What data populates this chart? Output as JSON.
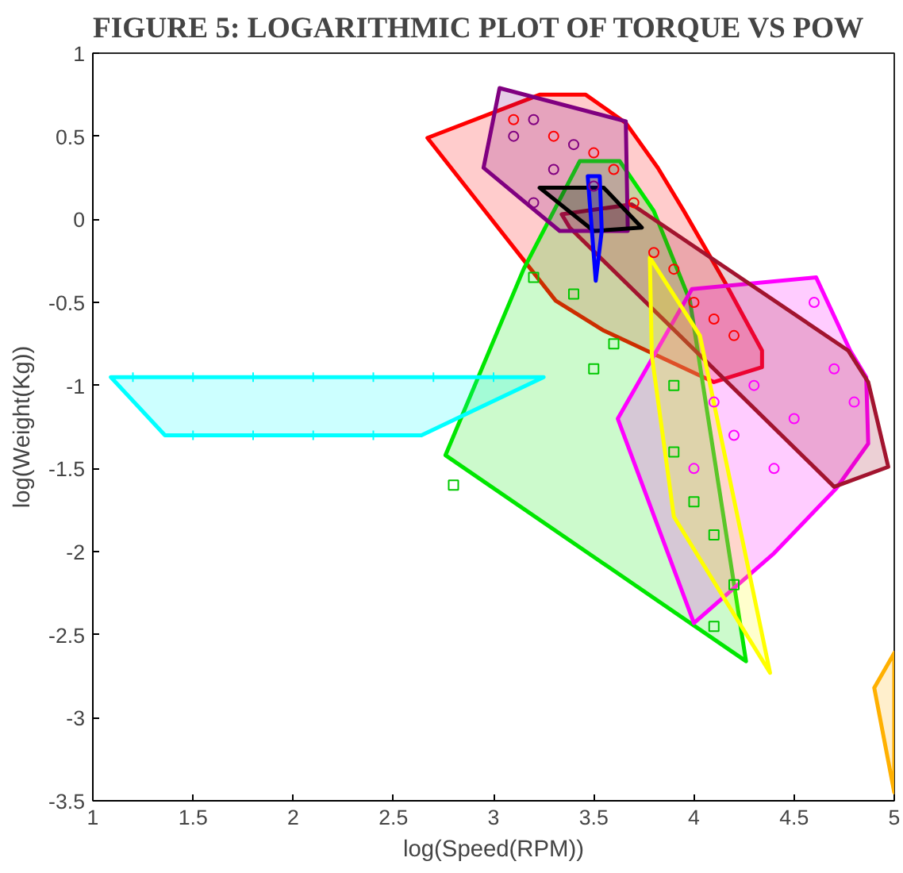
{
  "chart_data": {
    "type": "area",
    "title": "FIGURE 5: LOGARITHMIC PLOT OF TORQUE VS POW",
    "xlabel": "log(Speed(RPM))",
    "ylabel": "log(Weight(Kg))",
    "xlim": [
      1,
      5
    ],
    "ylim": [
      -3.5,
      1
    ],
    "xticks": [
      1,
      1.5,
      2,
      2.5,
      3,
      3.5,
      4,
      4.5,
      5
    ],
    "yticks": [
      -3.5,
      -3,
      -2.5,
      -2,
      -1.5,
      -1,
      -0.5,
      0,
      0.5,
      1
    ],
    "grid": false,
    "series": [
      {
        "color": "#ff0000",
        "x": [
          2.67,
          3.23,
          3.46,
          3.66,
          3.82,
          3.95,
          4.16,
          4.34,
          4.34,
          4.1,
          3.55,
          3.31
        ],
        "values": [
          0.49,
          0.75,
          0.75,
          0.58,
          0.31,
          0.05,
          -0.39,
          -0.79,
          -0.89,
          -0.98,
          -0.67,
          -0.49
        ]
      },
      {
        "color": "#00e600",
        "x": [
          3.43,
          3.63,
          3.8,
          3.98,
          4.26,
          2.76,
          3.15
        ],
        "values": [
          0.35,
          0.35,
          0.05,
          -0.49,
          -2.66,
          -1.42,
          -0.3
        ]
      },
      {
        "color": "#00ffff",
        "x": [
          1.09,
          3.25,
          2.64,
          1.36
        ],
        "values": [
          -0.95,
          -0.95,
          -1.3,
          -1.3
        ]
      },
      {
        "color": "#ff00ff",
        "x": [
          3.99,
          4.61,
          4.78,
          4.86,
          4.87,
          4.71,
          4.4,
          4.0,
          3.62
        ],
        "values": [
          -0.42,
          -0.35,
          -0.79,
          -0.95,
          -1.35,
          -1.62,
          -2.01,
          -2.43,
          -1.2
        ]
      },
      {
        "color": "#a2142f",
        "x": [
          3.34,
          3.69,
          4.77,
          4.87,
          4.97,
          4.7,
          3.38
        ],
        "values": [
          0.03,
          0.09,
          -0.79,
          -0.98,
          -1.49,
          -1.61,
          -0.05
        ]
      },
      {
        "color": "#800080",
        "x": [
          3.03,
          3.66,
          3.67,
          3.33,
          2.95
        ],
        "values": [
          0.79,
          0.59,
          -0.07,
          -0.07,
          0.31
        ]
      },
      {
        "color": "#ffff00",
        "x": [
          3.78,
          4.03,
          4.38,
          3.9,
          3.79
        ],
        "values": [
          -0.23,
          -0.7,
          -2.73,
          -1.79,
          -0.82
        ]
      },
      {
        "color": "#000000",
        "x": [
          3.23,
          3.55,
          3.74,
          3.5
        ],
        "values": [
          0.19,
          0.19,
          -0.05,
          -0.07
        ]
      },
      {
        "color": "#0000ff",
        "x": [
          3.47,
          3.53,
          3.54,
          3.51
        ],
        "values": [
          0.26,
          0.26,
          -0.07,
          -0.37
        ]
      },
      {
        "color": "#ffb000",
        "x": [
          4.9,
          5.0,
          5.0
        ],
        "values": [
          -2.82,
          -2.61,
          -3.45
        ]
      },
      {
        "type": "scatter",
        "marker": "cross",
        "color": "#00ffff",
        "x": [
          1.2,
          1.5,
          1.8,
          2.1,
          2.4,
          2.7,
          3.0,
          1.5,
          1.8,
          2.1,
          2.4
        ],
        "values": [
          -0.95,
          -0.95,
          -0.95,
          -0.95,
          -0.95,
          -0.95,
          -0.95,
          -1.3,
          -1.3,
          -1.3,
          -1.3
        ]
      },
      {
        "type": "scatter",
        "marker": "square",
        "color": "#00c800",
        "x": [
          3.2,
          3.4,
          3.6,
          3.5,
          3.9,
          4.0,
          4.1,
          3.9,
          4.2,
          4.1,
          2.8
        ],
        "values": [
          -0.35,
          -0.45,
          -0.75,
          -0.9,
          -1.0,
          -1.7,
          -1.9,
          -1.4,
          -2.2,
          -2.45,
          -1.6
        ]
      },
      {
        "type": "scatter",
        "marker": "circle",
        "color": "#ff0000",
        "x": [
          3.1,
          3.3,
          3.5,
          3.6,
          3.7,
          3.8,
          3.9,
          4.0,
          4.1,
          4.2
        ],
        "values": [
          0.6,
          0.5,
          0.4,
          0.3,
          0.1,
          -0.2,
          -0.3,
          -0.5,
          -0.6,
          -0.7
        ]
      },
      {
        "type": "scatter",
        "marker": "circle",
        "color": "#800080",
        "x": [
          3.1,
          3.2,
          3.3,
          3.4,
          3.5,
          3.2
        ],
        "values": [
          0.5,
          0.6,
          0.3,
          0.45,
          0.2,
          0.1
        ]
      },
      {
        "type": "scatter",
        "marker": "circle",
        "color": "#ff00ff",
        "x": [
          4.6,
          4.7,
          4.8,
          4.5,
          4.3,
          4.1,
          4.0,
          4.4,
          4.2
        ],
        "values": [
          -0.5,
          -0.9,
          -1.1,
          -1.2,
          -1.0,
          -1.1,
          -1.5,
          -1.5,
          -1.3
        ]
      }
    ]
  }
}
